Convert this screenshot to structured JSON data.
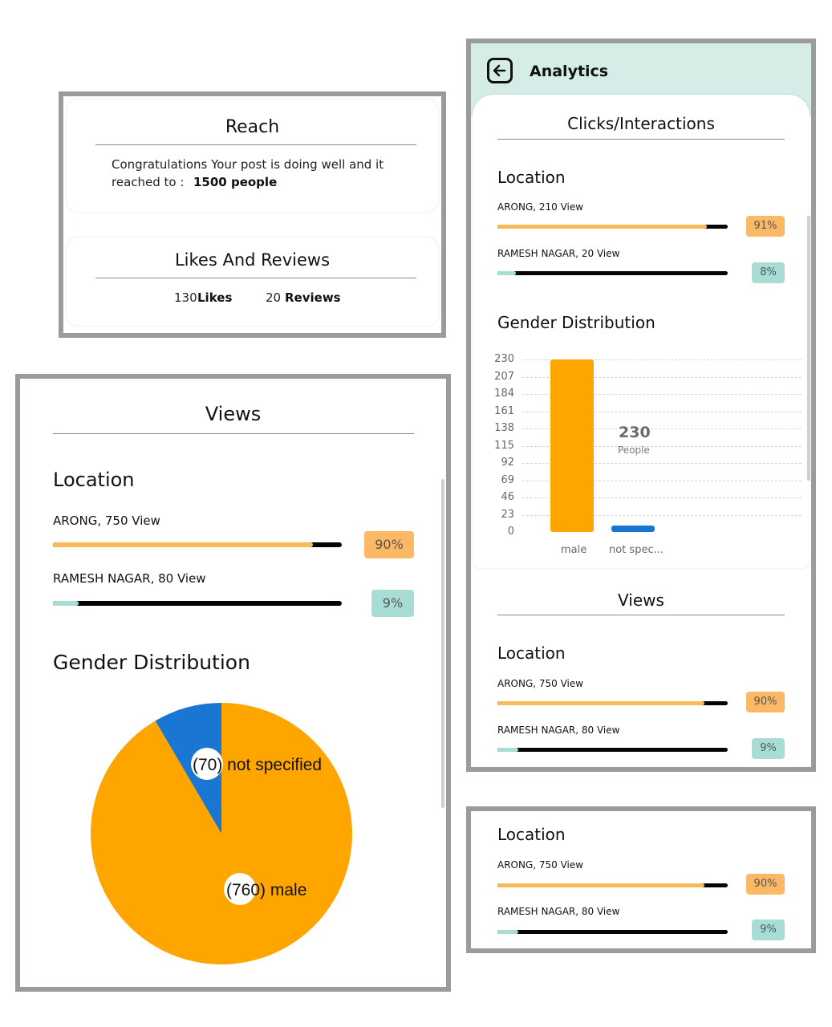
{
  "reach_panel": {
    "reach_title": "Reach",
    "reach_text_line1": "Congratulations Your post is doing well and it",
    "reach_text_line2_prefix": "reached to :",
    "reach_count": "1500 people",
    "likes_title": "Likes And Reviews",
    "likes_number": "130",
    "likes_word": "Likes",
    "reviews_number": "20",
    "reviews_word": "Reviews"
  },
  "views_panel": {
    "title": "Views",
    "location_heading": "Location",
    "locations": [
      {
        "label": "ARONG, 750 View",
        "percent": 90,
        "badge": "90%",
        "color": "#f8bb57",
        "badge_bg": "#fbb865"
      },
      {
        "label": "RAMESH NAGAR, 80 View",
        "percent": 9,
        "badge": "9%",
        "color": "#a8ddd6",
        "badge_bg": "#a8ddd6"
      }
    ],
    "gender_heading": "Gender Distribution",
    "pie": {
      "slices": [
        {
          "label": "(760) male",
          "value": 760,
          "color": "#ffa500"
        },
        {
          "label": "(70) not specified",
          "value": 70,
          "color": "#1976d2"
        }
      ]
    }
  },
  "analytics_panel": {
    "back_icon": "arrow-left-icon",
    "header_title": "Analytics",
    "header_bg": "#d6ede7",
    "clicks_title": "Clicks/Interactions",
    "location_heading": "Location",
    "locations": [
      {
        "label": "ARONG, 210 View",
        "percent": 91,
        "badge": "91%",
        "color": "#f8bb57",
        "badge_bg": "#fbb865"
      },
      {
        "label": "RAMESH NAGAR, 20 View",
        "percent": 8,
        "badge": "8%",
        "color": "#a8ddd6",
        "badge_bg": "#a8ddd6"
      }
    ],
    "gender_heading": "Gender Distribution",
    "chart_data": {
      "type": "bar",
      "categories": [
        "male",
        "not spec..."
      ],
      "values": [
        230,
        0
      ],
      "colors": [
        "#ffa500",
        "#1976d2"
      ],
      "ylim": [
        0,
        230
      ],
      "yticks": [
        "230",
        "207",
        "184",
        "161",
        "138",
        "115",
        "92",
        "69",
        "46",
        "23",
        "0"
      ],
      "annotation_value": "230",
      "annotation_unit": "People",
      "grid": true
    },
    "views_title": "Views",
    "views_location_heading": "Location",
    "views_locations": [
      {
        "label": "ARONG, 750 View",
        "percent": 90,
        "badge": "90%",
        "color": "#f8bb57",
        "badge_bg": "#fbb865"
      },
      {
        "label": "RAMESH NAGAR, 80 View",
        "percent": 9,
        "badge": "9%",
        "color": "#a8ddd6",
        "badge_bg": "#a8ddd6"
      }
    ]
  },
  "location_panel": {
    "heading": "Location",
    "locations": [
      {
        "label": "ARONG, 750 View",
        "percent": 90,
        "badge": "90%",
        "color": "#f8bb57",
        "badge_bg": "#fbb865"
      },
      {
        "label": "RAMESH NAGAR, 80 View",
        "percent": 9,
        "badge": "9%",
        "color": "#a8ddd6",
        "badge_bg": "#a8ddd6"
      }
    ]
  }
}
